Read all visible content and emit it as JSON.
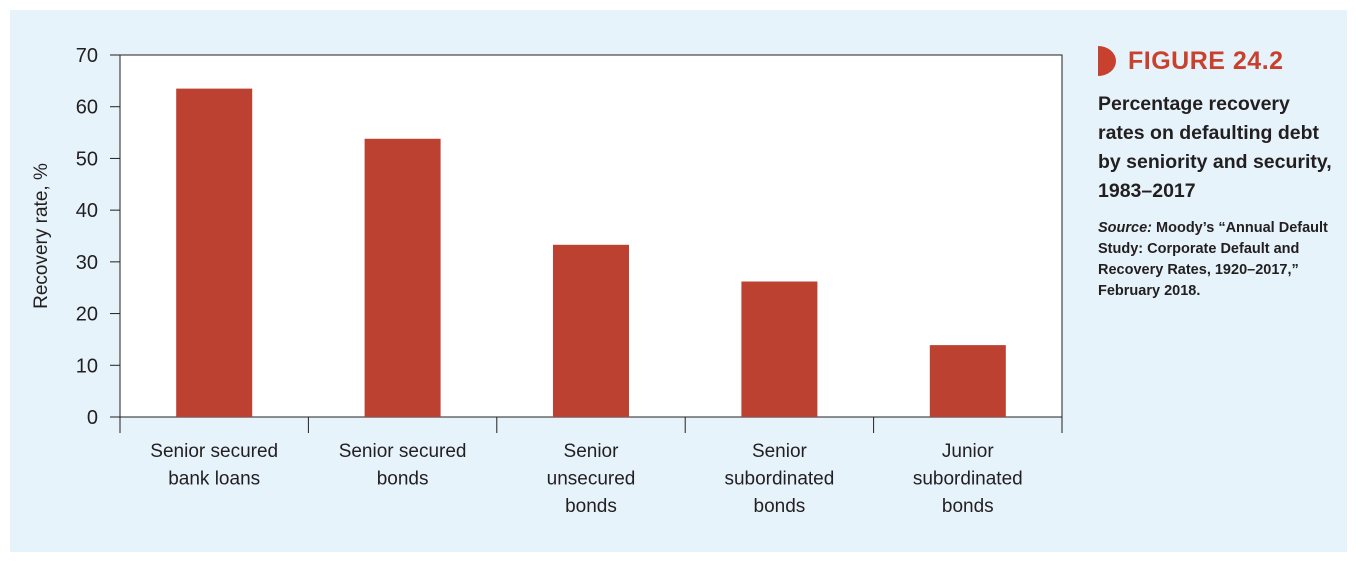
{
  "figure": {
    "label": "FIGURE 24.2",
    "caption": "Percentage recovery rates on defaulting debt by seniority and security, 1983–2017",
    "source_label": "Source:",
    "source_text": "Moody’s “Annual Default Study: Corporate Default and Recovery Rates, 1920–2017,” February 2018."
  },
  "colors": {
    "bar": "#bc4130",
    "background": "#e6f3fb",
    "accent": "#c8412e"
  },
  "chart_data": {
    "type": "bar",
    "title": "",
    "xlabel": "",
    "ylabel": "Recovery rate, %",
    "ylim": [
      0,
      70
    ],
    "yticks": [
      0,
      10,
      20,
      30,
      40,
      50,
      60,
      70
    ],
    "grid": false,
    "categories": [
      [
        "Senior secured",
        "bank loans"
      ],
      [
        "Senior secured",
        "bonds"
      ],
      [
        "Senior",
        "unsecured",
        "bonds"
      ],
      [
        "Senior",
        "subordinated",
        "bonds"
      ],
      [
        "Junior",
        "subordinated",
        "bonds"
      ]
    ],
    "values": [
      63.5,
      53.8,
      33.3,
      26.2,
      13.9
    ]
  }
}
